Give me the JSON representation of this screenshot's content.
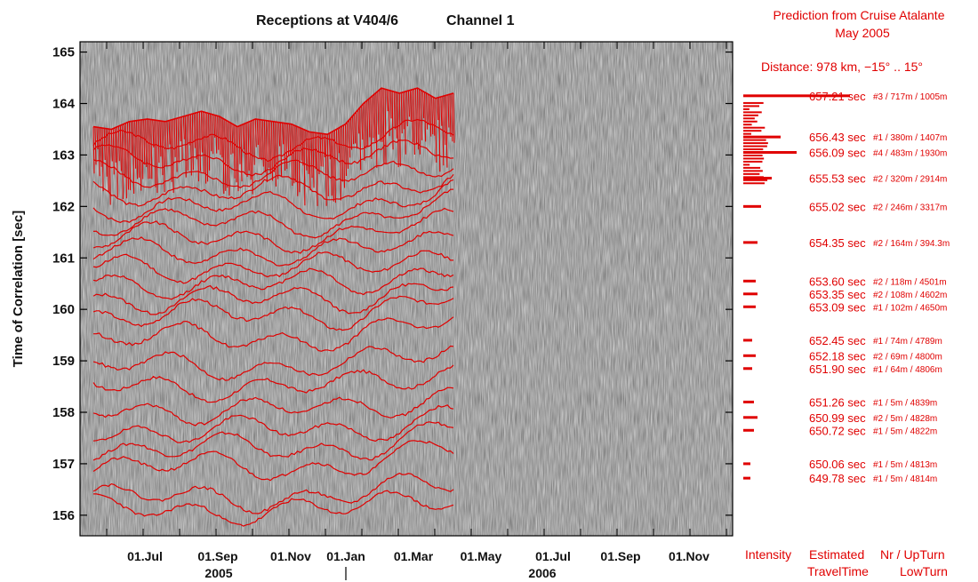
{
  "chart_data": {
    "type": "line",
    "title": "Receptions at V404/6",
    "channel": "Channel 1",
    "ylabel": "Time of Correlation  [sec]",
    "ylim": [
      155.6,
      165.2
    ],
    "yticks": [
      156,
      157,
      158,
      159,
      160,
      161,
      162,
      163,
      164,
      165
    ],
    "xticks": [
      {
        "label": "01.Jul"
      },
      {
        "label": "01.Sep"
      },
      {
        "label": "01.Nov"
      },
      {
        "label": "01.Jan"
      },
      {
        "label": "01.Mar"
      },
      {
        "label": "01.May"
      },
      {
        "label": "01.Jul"
      },
      {
        "label": "01.Sep"
      },
      {
        "label": "01.Nov"
      }
    ],
    "years": [
      {
        "label": "2005"
      },
      {
        "label": "2006"
      }
    ],
    "series_note": "red traces: received arrivals, data end around 01.Apr 2006",
    "trace_offsets": [
      163.2,
      162.9,
      162.6,
      162.3,
      162.0,
      161.7,
      161.4,
      161.1,
      160.8,
      160.5,
      160.2,
      159.9,
      159.45,
      158.9,
      158.5,
      158.05,
      157.65,
      157.3,
      156.95,
      156.35,
      156.1
    ],
    "top_trace": {
      "x": [
        0,
        0.05,
        0.1,
        0.15,
        0.2,
        0.25,
        0.3,
        0.35,
        0.4,
        0.45,
        0.5,
        0.55,
        0.6,
        0.65,
        0.7,
        0.75,
        0.8,
        0.85,
        0.9,
        0.95,
        1.0
      ],
      "y": [
        163.55,
        163.5,
        163.65,
        163.7,
        163.65,
        163.75,
        163.85,
        163.75,
        163.55,
        163.7,
        163.65,
        163.6,
        163.45,
        163.4,
        163.6,
        164.0,
        164.3,
        164.2,
        164.3,
        164.1,
        164.2
      ]
    }
  },
  "prediction": {
    "header_line1": "Prediction from Cruise Atalante",
    "header_line2": "May 2005",
    "distance": "Distance: 978 km,   −15° .. 15°",
    "rows": [
      {
        "time": "657.21 sec",
        "path": "#3 /  717m / 1005m",
        "y": 164.15,
        "len": 120
      },
      {
        "time": "656.43 sec",
        "path": "#1 /  380m / 1407m",
        "y": 163.35,
        "len": 42
      },
      {
        "time": "656.09 sec",
        "path": "#4 /  483m / 1930m",
        "y": 163.05,
        "len": 60
      },
      {
        "time": "655.53 sec",
        "path": "#2 /  320m / 2914m",
        "y": 162.55,
        "len": 32
      },
      {
        "time": "655.02 sec",
        "path": "#2 /  246m / 3317m",
        "y": 162.0,
        "len": 20
      },
      {
        "time": "654.35 sec",
        "path": "#2 /  164m / 394.3m",
        "y": 161.3,
        "len": 16
      },
      {
        "time": "653.60 sec",
        "path": "#2 /  118m / 4501m",
        "y": 160.55,
        "len": 14
      },
      {
        "time": "653.35 sec",
        "path": "#2 /  108m / 4602m",
        "y": 160.3,
        "len": 16
      },
      {
        "time": "653.09 sec",
        "path": "#1 /  102m / 4650m",
        "y": 160.05,
        "len": 14
      },
      {
        "time": "652.45 sec",
        "path": "#1 /  74m / 4789m",
        "y": 159.4,
        "len": 10
      },
      {
        "time": "652.18 sec",
        "path": "#2 /  69m / 4800m",
        "y": 159.1,
        "len": 14
      },
      {
        "time": "651.90 sec",
        "path": "#1 /  64m / 4806m",
        "y": 158.85,
        "len": 10
      },
      {
        "time": "651.26 sec",
        "path": "#1 /  5m / 4839m",
        "y": 158.2,
        "len": 12
      },
      {
        "time": "650.99 sec",
        "path": "#2 /  5m / 4828m",
        "y": 157.9,
        "len": 16
      },
      {
        "time": "650.72 sec",
        "path": "#1 /  5m / 4822m",
        "y": 157.65,
        "len": 12
      },
      {
        "time": "650.06 sec",
        "path": "#1 /  5m / 4813m",
        "y": 157.0,
        "len": 8
      },
      {
        "time": "649.78 sec",
        "path": "#1 /  5m / 4814m",
        "y": 156.72,
        "len": 8
      }
    ],
    "footer": {
      "intensity": "Intensity",
      "estimated": "Estimated",
      "traveltime": "TravelTime",
      "nr_upturn": "Nr / UpTurn",
      "lowturn": "LowTurn"
    }
  }
}
